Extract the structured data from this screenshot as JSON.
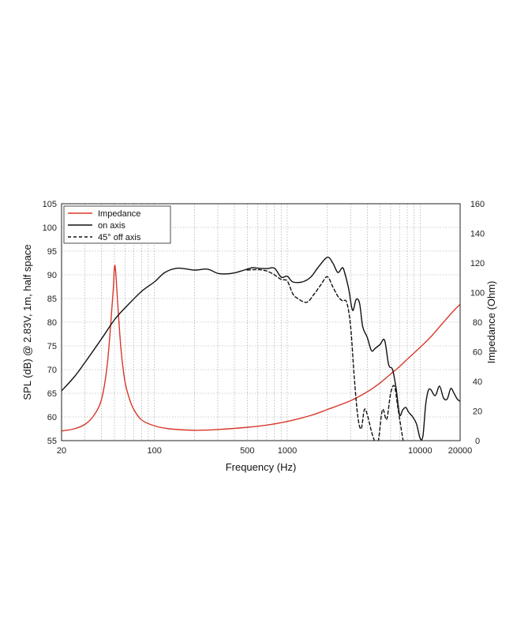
{
  "chart_data": {
    "type": "line",
    "title": "",
    "xlabel": "Frequency (Hz)",
    "ylabel": "SPL (dB) @ 2.83V, 1m, half space",
    "y2label": "Impedance (Ohm)",
    "xscale": "log",
    "xlim": [
      20,
      20000
    ],
    "ylim": [
      55,
      105
    ],
    "y2lim": [
      0,
      160
    ],
    "grid": true,
    "legend_position": "top-left",
    "x_ticks": [
      {
        "value": 20,
        "label": "20"
      },
      {
        "value": 100,
        "label": "100"
      },
      {
        "value": 500,
        "label": "500"
      },
      {
        "value": 1000,
        "label": "1000"
      },
      {
        "value": 10000,
        "label": "10000"
      },
      {
        "value": 20000,
        "label": "20000"
      }
    ],
    "y_ticks": [
      {
        "value": 55,
        "label": "55"
      },
      {
        "value": 60,
        "label": "60"
      },
      {
        "value": 65,
        "label": "65"
      },
      {
        "value": 70,
        "label": "70"
      },
      {
        "value": 75,
        "label": "75"
      },
      {
        "value": 80,
        "label": "80"
      },
      {
        "value": 85,
        "label": "85"
      },
      {
        "value": 90,
        "label": "90"
      },
      {
        "value": 95,
        "label": "95"
      },
      {
        "value": 100,
        "label": "100"
      },
      {
        "value": 105,
        "label": "105"
      }
    ],
    "y2_ticks": [
      {
        "value": 0,
        "label": "0"
      },
      {
        "value": 20,
        "label": "20"
      },
      {
        "value": 40,
        "label": "40"
      },
      {
        "value": 60,
        "label": "60"
      },
      {
        "value": 80,
        "label": "80"
      },
      {
        "value": 100,
        "label": "100"
      },
      {
        "value": 120,
        "label": "120"
      },
      {
        "value": 140,
        "label": "140"
      },
      {
        "value": 160,
        "label": "160"
      }
    ],
    "series": [
      {
        "name": "Impedance",
        "axis": "right",
        "color": "#d8382b",
        "style": "solid",
        "points": [
          [
            20,
            6.5
          ],
          [
            25,
            8
          ],
          [
            30,
            11
          ],
          [
            35,
            17
          ],
          [
            40,
            28
          ],
          [
            44,
            50
          ],
          [
            47,
            80
          ],
          [
            49,
            102
          ],
          [
            50,
            117
          ],
          [
            51,
            115
          ],
          [
            53,
            92
          ],
          [
            56,
            62
          ],
          [
            60,
            40
          ],
          [
            65,
            28
          ],
          [
            70,
            21
          ],
          [
            80,
            14
          ],
          [
            100,
            10
          ],
          [
            130,
            8
          ],
          [
            200,
            7
          ],
          [
            300,
            7.5
          ],
          [
            500,
            9
          ],
          [
            700,
            10.5
          ],
          [
            1000,
            13
          ],
          [
            1500,
            17
          ],
          [
            2000,
            21
          ],
          [
            3000,
            27
          ],
          [
            4000,
            33
          ],
          [
            5000,
            39
          ],
          [
            6000,
            45
          ],
          [
            7000,
            50
          ],
          [
            8000,
            55
          ],
          [
            10000,
            63
          ],
          [
            12000,
            70
          ],
          [
            15000,
            80
          ],
          [
            18000,
            88
          ],
          [
            20000,
            92
          ]
        ]
      },
      {
        "name": "on axis",
        "axis": "left",
        "color": "#111111",
        "style": "solid",
        "points": [
          [
            20,
            65.5
          ],
          [
            25,
            68.5
          ],
          [
            30,
            71.5
          ],
          [
            40,
            76.5
          ],
          [
            50,
            80.5
          ],
          [
            60,
            83
          ],
          [
            80,
            86.5
          ],
          [
            100,
            88.5
          ],
          [
            120,
            90.5
          ],
          [
            150,
            91.4
          ],
          [
            200,
            91
          ],
          [
            250,
            91.2
          ],
          [
            300,
            90.3
          ],
          [
            350,
            90.2
          ],
          [
            400,
            90.4
          ],
          [
            450,
            90.8
          ],
          [
            500,
            91.2
          ],
          [
            550,
            91.5
          ],
          [
            600,
            91.4
          ],
          [
            700,
            91.3
          ],
          [
            800,
            91.4
          ],
          [
            900,
            89.5
          ],
          [
            1000,
            89.7
          ],
          [
            1100,
            88.5
          ],
          [
            1300,
            88.5
          ],
          [
            1500,
            89.5
          ],
          [
            1700,
            91.5
          ],
          [
            2000,
            93.7
          ],
          [
            2200,
            92.5
          ],
          [
            2400,
            90.5
          ],
          [
            2600,
            91.5
          ],
          [
            2700,
            90.5
          ],
          [
            2900,
            87
          ],
          [
            3100,
            82.5
          ],
          [
            3300,
            84.8
          ],
          [
            3500,
            84
          ],
          [
            3700,
            79
          ],
          [
            4000,
            76.8
          ],
          [
            4300,
            74
          ],
          [
            4600,
            74.5
          ],
          [
            5000,
            75.3
          ],
          [
            5400,
            76.2
          ],
          [
            5800,
            71
          ],
          [
            6200,
            70
          ],
          [
            6600,
            66
          ],
          [
            7000,
            60.5
          ],
          [
            7400,
            61.5
          ],
          [
            7800,
            62
          ],
          [
            8200,
            61
          ],
          [
            8800,
            60
          ],
          [
            9400,
            58.5
          ],
          [
            10000,
            55.5
          ],
          [
            10500,
            56
          ],
          [
            11000,
            62.5
          ],
          [
            11500,
            65.5
          ],
          [
            12000,
            65.8
          ],
          [
            13000,
            64.5
          ],
          [
            14000,
            66.5
          ],
          [
            15000,
            64
          ],
          [
            16000,
            63.8
          ],
          [
            17000,
            66
          ],
          [
            18000,
            65
          ],
          [
            19000,
            63.8
          ],
          [
            20000,
            63.3
          ]
        ]
      },
      {
        "name": "45° off axis",
        "axis": "left",
        "color": "#111111",
        "style": "dashed",
        "points": [
          [
            500,
            91
          ],
          [
            600,
            91.1
          ],
          [
            700,
            90.8
          ],
          [
            800,
            90
          ],
          [
            900,
            89
          ],
          [
            1000,
            88.7
          ],
          [
            1100,
            86
          ],
          [
            1200,
            85
          ],
          [
            1400,
            84.2
          ],
          [
            1600,
            86
          ],
          [
            1800,
            88
          ],
          [
            2000,
            89.6
          ],
          [
            2200,
            87.5
          ],
          [
            2400,
            85.5
          ],
          [
            2600,
            84.5
          ],
          [
            2800,
            84.2
          ],
          [
            3000,
            79
          ],
          [
            3200,
            68
          ],
          [
            3400,
            60
          ],
          [
            3600,
            57.5
          ],
          [
            3800,
            61.5
          ],
          [
            4000,
            60.5
          ],
          [
            4400,
            56
          ],
          [
            4800,
            54.5
          ],
          [
            5200,
            61.5
          ],
          [
            5600,
            59.5
          ],
          [
            6000,
            65
          ],
          [
            6400,
            66.5
          ],
          [
            6800,
            62
          ],
          [
            7200,
            57.5
          ],
          [
            7500,
            54.5
          ]
        ]
      }
    ]
  }
}
